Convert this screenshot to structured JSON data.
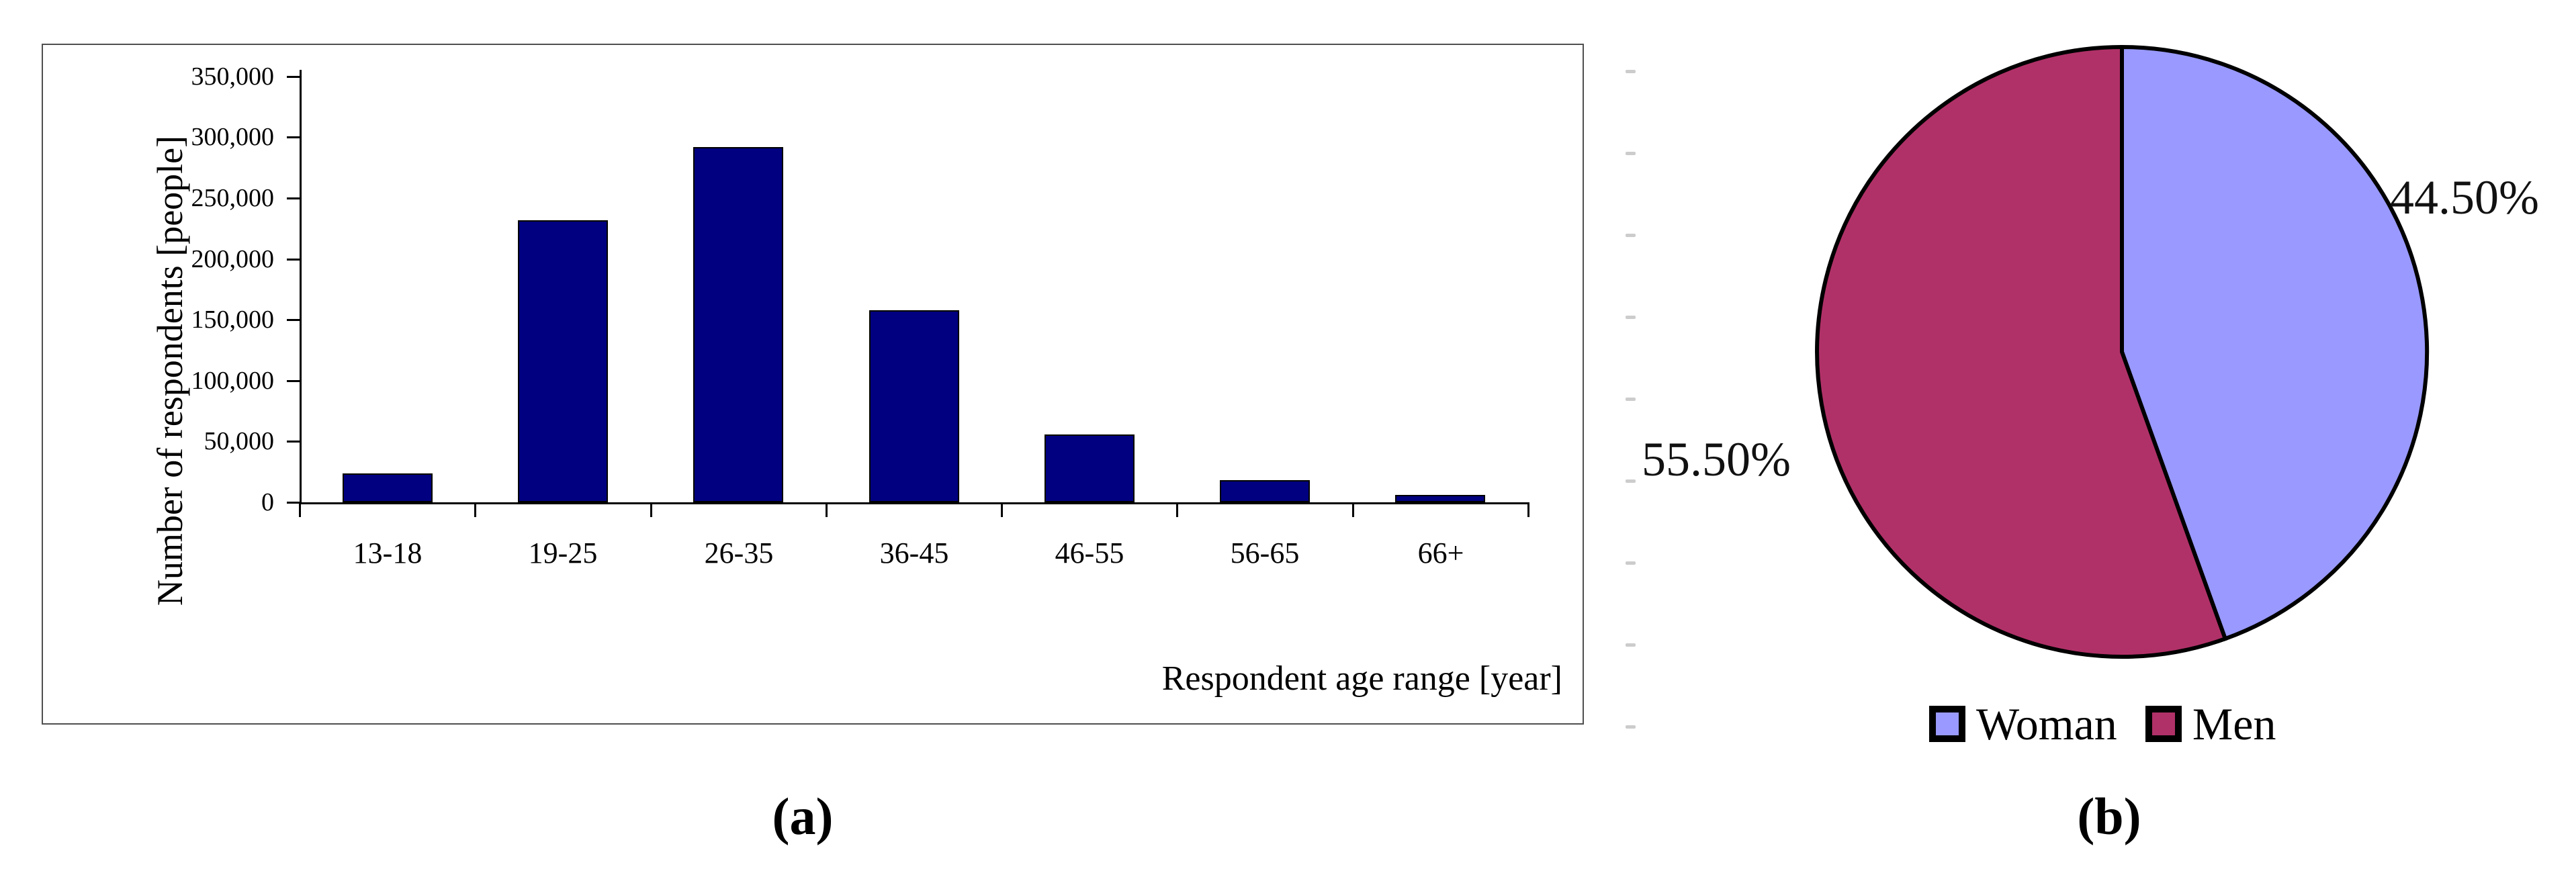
{
  "figure": {
    "caption_a": "(a)",
    "caption_b": "(b)"
  },
  "chart_data": [
    {
      "type": "bar",
      "panel": "a",
      "categories": [
        "13-18",
        "19-25",
        "26-35",
        "36-45",
        "46-55",
        "56-65",
        "66+"
      ],
      "values": [
        24000,
        232000,
        292000,
        158000,
        56000,
        18000,
        6000
      ],
      "xlabel": "Respondent age range [year]",
      "ylabel": "Number of respondents [people]",
      "ylim": [
        0,
        350000
      ],
      "ytick_interval": 50000,
      "ytick_labels": [
        "0",
        "50,000",
        "100,000",
        "150,000",
        "200,000",
        "250,000",
        "300,000",
        "350,000"
      ],
      "bar_color": "#000080",
      "grid": false,
      "legend_position": "none"
    },
    {
      "type": "pie",
      "panel": "b",
      "start_angle": "top",
      "direction": "clockwise",
      "slices": [
        {
          "label": "Woman",
          "value": 44.5,
          "display": "44.50%",
          "color": "#9999FF"
        },
        {
          "label": "Men",
          "value": 55.5,
          "display": "55.50%",
          "color": "#B03168"
        }
      ],
      "outline_color": "#000000",
      "legend_position": "bottom"
    }
  ]
}
